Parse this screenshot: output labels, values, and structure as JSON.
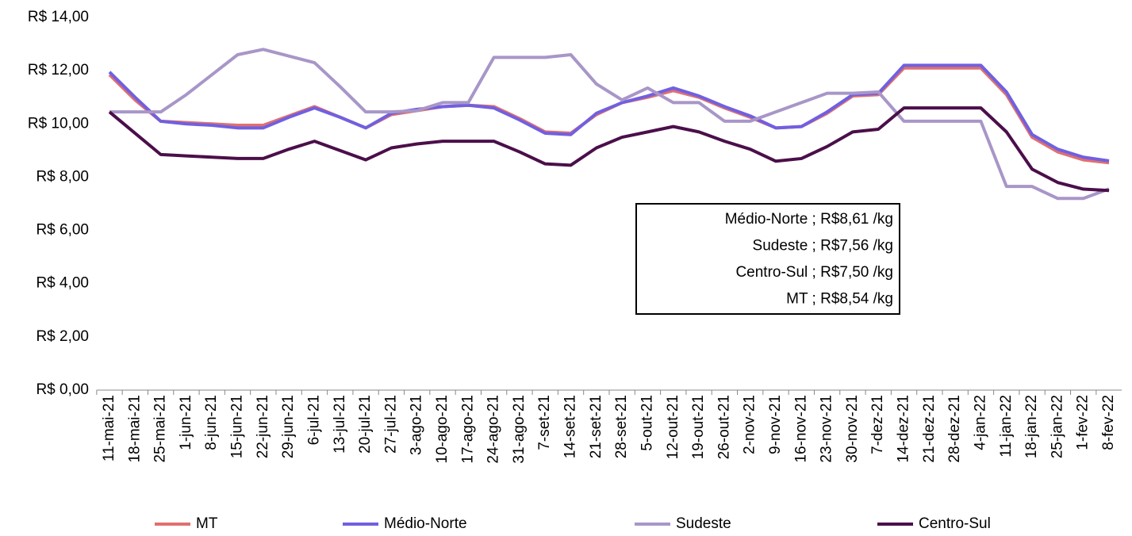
{
  "chart_data": {
    "type": "line",
    "categories": [
      "11-mai-21",
      "18-mai-21",
      "25-mai-21",
      "1-jun-21",
      "8-jun-21",
      "15-jun-21",
      "22-jun-21",
      "29-jun-21",
      "6-jul-21",
      "13-jul-21",
      "20-jul-21",
      "27-jul-21",
      "3-ago-21",
      "10-ago-21",
      "17-ago-21",
      "24-ago-21",
      "31-ago-21",
      "7-set-21",
      "14-set-21",
      "21-set-21",
      "28-set-21",
      "5-out-21",
      "12-out-21",
      "19-out-21",
      "26-out-21",
      "2-nov-21",
      "9-nov-21",
      "16-nov-21",
      "23-nov-21",
      "30-nov-21",
      "7-dez-21",
      "14-dez-21",
      "21-dez-21",
      "28-dez-21",
      "4-jan-22",
      "11-jan-22",
      "18-jan-22",
      "25-jan-22",
      "1-fev-22",
      "8-fev-22"
    ],
    "series": [
      {
        "name": "MT",
        "color": "#e07070",
        "values": [
          11.85,
          10.9,
          10.1,
          10.05,
          10.0,
          9.95,
          9.95,
          10.3,
          10.65,
          10.25,
          9.85,
          10.35,
          10.5,
          10.65,
          10.7,
          10.65,
          10.2,
          9.7,
          9.65,
          10.35,
          10.8,
          11.0,
          11.25,
          11.0,
          10.6,
          10.25,
          9.85,
          9.9,
          10.4,
          11.05,
          11.1,
          12.1,
          12.1,
          12.1,
          12.1,
          11.1,
          9.5,
          8.95,
          8.65,
          8.54
        ]
      },
      {
        "name": "Médio-Norte",
        "color": "#7060e0",
        "values": [
          11.95,
          11.0,
          10.1,
          10.0,
          9.95,
          9.85,
          9.85,
          10.25,
          10.6,
          10.25,
          9.85,
          10.4,
          10.55,
          10.65,
          10.7,
          10.6,
          10.15,
          9.65,
          9.6,
          10.4,
          10.8,
          11.05,
          11.35,
          11.05,
          10.65,
          10.3,
          9.85,
          9.9,
          10.45,
          11.1,
          11.15,
          12.2,
          12.2,
          12.2,
          12.2,
          11.2,
          9.6,
          9.05,
          8.75,
          8.61
        ]
      },
      {
        "name": "Sudeste",
        "color": "#a896c8",
        "values": [
          10.45,
          10.45,
          10.45,
          11.1,
          11.85,
          12.6,
          12.8,
          12.55,
          12.3,
          11.4,
          10.45,
          10.45,
          10.5,
          10.8,
          10.8,
          12.5,
          12.5,
          12.5,
          12.6,
          11.5,
          10.9,
          11.35,
          10.8,
          10.8,
          10.1,
          10.1,
          10.45,
          10.8,
          11.15,
          11.15,
          11.2,
          10.1,
          10.1,
          10.1,
          10.1,
          7.65,
          7.65,
          7.2,
          7.2,
          7.56
        ]
      },
      {
        "name": "Centro-Sul",
        "color": "#4b0f4a",
        "values": [
          10.45,
          9.65,
          8.85,
          8.8,
          8.75,
          8.7,
          8.7,
          9.05,
          9.35,
          9.0,
          8.65,
          9.1,
          9.25,
          9.35,
          9.35,
          9.35,
          8.95,
          8.5,
          8.45,
          9.1,
          9.5,
          9.7,
          9.9,
          9.7,
          9.35,
          9.05,
          8.6,
          8.7,
          9.15,
          9.7,
          9.8,
          10.6,
          10.6,
          10.6,
          10.6,
          9.7,
          8.3,
          7.8,
          7.55,
          7.5
        ]
      }
    ],
    "ylim": [
      0,
      14
    ],
    "yticks": [
      {
        "value": 0,
        "label": "R$ 0,00"
      },
      {
        "value": 2,
        "label": "R$ 2,00"
      },
      {
        "value": 4,
        "label": "R$ 4,00"
      },
      {
        "value": 6,
        "label": "R$ 6,00"
      },
      {
        "value": 8,
        "label": "R$ 8,00"
      },
      {
        "value": 10,
        "label": "R$ 10,00"
      },
      {
        "value": 12,
        "label": "R$ 12,00"
      },
      {
        "value": 14,
        "label": "R$ 14,00"
      }
    ],
    "annotations": [
      "Médio-Norte ;  R$8,61 /kg",
      "Sudeste ;  R$7,56 /kg",
      "Centro-Sul ;  R$7,50 /kg",
      "MT ;  R$8,54 /kg"
    ],
    "legend_position": "bottom"
  }
}
